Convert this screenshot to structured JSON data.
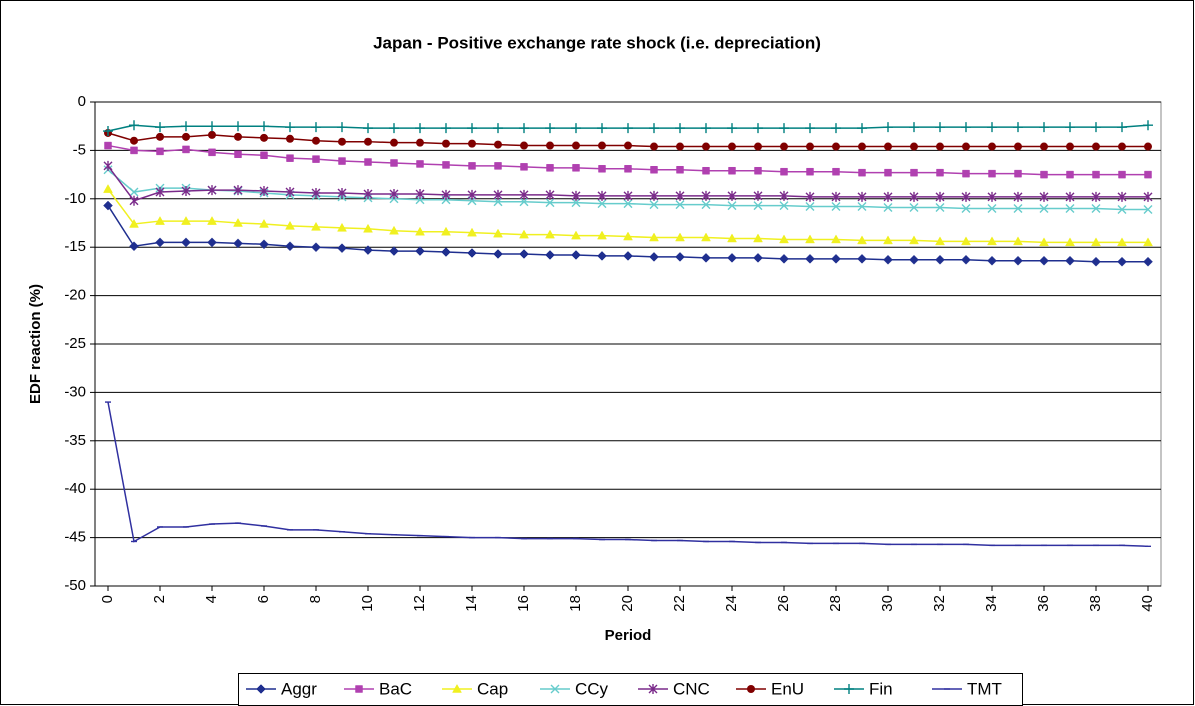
{
  "chart_data": {
    "type": "line",
    "title": "Japan - Positive exchange rate shock (i.e. depreciation)",
    "x_label": "Period",
    "y_label": "EDF reaction (%)",
    "x": [
      0,
      1,
      2,
      3,
      4,
      5,
      6,
      7,
      8,
      9,
      10,
      11,
      12,
      13,
      14,
      15,
      16,
      17,
      18,
      19,
      20,
      21,
      22,
      23,
      24,
      25,
      26,
      27,
      28,
      29,
      30,
      31,
      32,
      33,
      34,
      35,
      36,
      37,
      38,
      39,
      40
    ],
    "xlim": [
      -0.5,
      40.5
    ],
    "xticks": [
      0,
      2,
      4,
      6,
      8,
      10,
      12,
      14,
      16,
      18,
      20,
      22,
      24,
      26,
      28,
      30,
      32,
      34,
      36,
      38,
      40
    ],
    "ylim": [
      -50,
      0
    ],
    "yticks": [
      -50,
      -45,
      -40,
      -35,
      -30,
      -25,
      -20,
      -15,
      -10,
      -5,
      0
    ],
    "grid": true,
    "legend": "bottom",
    "series": [
      {
        "name": "Aggr",
        "color": "#1f2f8f",
        "marker": "diamond",
        "values": [
          -10.7,
          -14.9,
          -14.5,
          -14.5,
          -14.5,
          -14.6,
          -14.7,
          -14.9,
          -15.0,
          -15.1,
          -15.3,
          -15.4,
          -15.4,
          -15.5,
          -15.6,
          -15.7,
          -15.7,
          -15.8,
          -15.8,
          -15.9,
          -15.9,
          -16.0,
          -16.0,
          -16.1,
          -16.1,
          -16.1,
          -16.2,
          -16.2,
          -16.2,
          -16.2,
          -16.3,
          -16.3,
          -16.3,
          -16.3,
          -16.4,
          -16.4,
          -16.4,
          -16.4,
          -16.5,
          -16.5,
          -16.5
        ]
      },
      {
        "name": "BaC",
        "color": "#b040b0",
        "marker": "square",
        "values": [
          -4.5,
          -5.0,
          -5.1,
          -4.9,
          -5.2,
          -5.4,
          -5.5,
          -5.8,
          -5.9,
          -6.1,
          -6.2,
          -6.3,
          -6.4,
          -6.5,
          -6.6,
          -6.6,
          -6.7,
          -6.8,
          -6.8,
          -6.9,
          -6.9,
          -7.0,
          -7.0,
          -7.1,
          -7.1,
          -7.1,
          -7.2,
          -7.2,
          -7.2,
          -7.3,
          -7.3,
          -7.3,
          -7.3,
          -7.4,
          -7.4,
          -7.4,
          -7.5,
          -7.5,
          -7.5,
          -7.5,
          -7.5
        ]
      },
      {
        "name": "Cap",
        "color": "#f0f020",
        "marker": "triangle",
        "values": [
          -9.0,
          -12.6,
          -12.3,
          -12.3,
          -12.3,
          -12.5,
          -12.6,
          -12.8,
          -12.9,
          -13.0,
          -13.1,
          -13.3,
          -13.4,
          -13.4,
          -13.5,
          -13.6,
          -13.7,
          -13.7,
          -13.8,
          -13.8,
          -13.9,
          -14.0,
          -14.0,
          -14.0,
          -14.1,
          -14.1,
          -14.2,
          -14.2,
          -14.2,
          -14.3,
          -14.3,
          -14.3,
          -14.4,
          -14.4,
          -14.4,
          -14.4,
          -14.5,
          -14.5,
          -14.5,
          -14.5,
          -14.5
        ]
      },
      {
        "name": "CCy",
        "color": "#66cccc",
        "marker": "x",
        "values": [
          -7.0,
          -9.3,
          -8.9,
          -8.9,
          -9.1,
          -9.2,
          -9.4,
          -9.6,
          -9.7,
          -9.8,
          -9.9,
          -10.0,
          -10.1,
          -10.1,
          -10.2,
          -10.3,
          -10.3,
          -10.4,
          -10.4,
          -10.5,
          -10.5,
          -10.6,
          -10.6,
          -10.6,
          -10.7,
          -10.7,
          -10.7,
          -10.8,
          -10.8,
          -10.8,
          -10.9,
          -10.9,
          -10.9,
          -11.0,
          -11.0,
          -11.0,
          -11.0,
          -11.0,
          -11.0,
          -11.1,
          -11.1
        ]
      },
      {
        "name": "CNC",
        "color": "#7a2a8a",
        "marker": "star",
        "values": [
          -6.6,
          -10.2,
          -9.3,
          -9.2,
          -9.1,
          -9.1,
          -9.2,
          -9.3,
          -9.4,
          -9.4,
          -9.5,
          -9.5,
          -9.5,
          -9.6,
          -9.6,
          -9.6,
          -9.6,
          -9.6,
          -9.7,
          -9.7,
          -9.7,
          -9.7,
          -9.7,
          -9.7,
          -9.7,
          -9.7,
          -9.7,
          -9.8,
          -9.8,
          -9.8,
          -9.8,
          -9.8,
          -9.8,
          -9.8,
          -9.8,
          -9.8,
          -9.8,
          -9.8,
          -9.8,
          -9.8,
          -9.8
        ]
      },
      {
        "name": "EnU",
        "color": "#800000",
        "marker": "circle",
        "values": [
          -3.2,
          -4.0,
          -3.6,
          -3.6,
          -3.4,
          -3.6,
          -3.7,
          -3.8,
          -4.0,
          -4.1,
          -4.1,
          -4.2,
          -4.2,
          -4.3,
          -4.3,
          -4.4,
          -4.5,
          -4.5,
          -4.5,
          -4.5,
          -4.5,
          -4.6,
          -4.6,
          -4.6,
          -4.6,
          -4.6,
          -4.6,
          -4.6,
          -4.6,
          -4.6,
          -4.6,
          -4.6,
          -4.6,
          -4.6,
          -4.6,
          -4.6,
          -4.6,
          -4.6,
          -4.6,
          -4.6,
          -4.6
        ]
      },
      {
        "name": "Fin",
        "color": "#008080",
        "marker": "plus",
        "values": [
          -3.0,
          -2.4,
          -2.6,
          -2.5,
          -2.5,
          -2.5,
          -2.5,
          -2.6,
          -2.6,
          -2.6,
          -2.7,
          -2.7,
          -2.7,
          -2.7,
          -2.7,
          -2.7,
          -2.7,
          -2.7,
          -2.7,
          -2.7,
          -2.7,
          -2.7,
          -2.7,
          -2.7,
          -2.7,
          -2.7,
          -2.7,
          -2.7,
          -2.7,
          -2.7,
          -2.6,
          -2.6,
          -2.6,
          -2.6,
          -2.6,
          -2.6,
          -2.6,
          -2.6,
          -2.6,
          -2.6,
          -2.4
        ]
      },
      {
        "name": "TMT",
        "color": "#3030a0",
        "marker": "dash",
        "values": [
          -31.0,
          -45.4,
          -43.9,
          -43.9,
          -43.6,
          -43.5,
          -43.8,
          -44.2,
          -44.2,
          -44.4,
          -44.6,
          -44.7,
          -44.8,
          -44.9,
          -45.0,
          -45.0,
          -45.1,
          -45.1,
          -45.1,
          -45.2,
          -45.2,
          -45.3,
          -45.3,
          -45.4,
          -45.4,
          -45.5,
          -45.5,
          -45.6,
          -45.6,
          -45.6,
          -45.7,
          -45.7,
          -45.7,
          -45.7,
          -45.8,
          -45.8,
          -45.8,
          -45.8,
          -45.8,
          -45.8,
          -45.9
        ]
      }
    ]
  }
}
